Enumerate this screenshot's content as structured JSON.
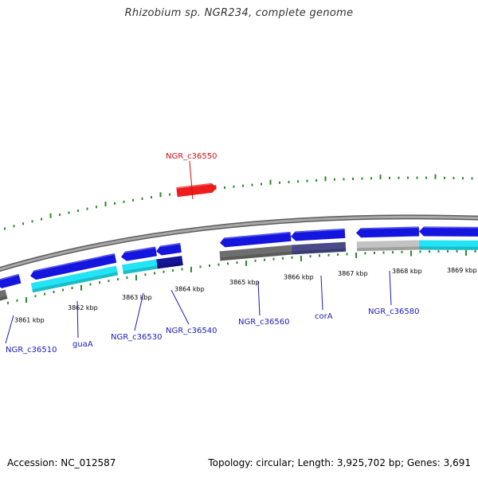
{
  "title": "Rhizobium sp. NGR234, complete genome",
  "footer": {
    "accession": "Accession: NC_012587",
    "topology": "Topology: circular; Length: 3,925,702 bp; Genes: 3,691"
  },
  "colors": {
    "backbone": "#8a8a8a",
    "cds_forward": "#1515e0",
    "cds_reverse": "#1e1ee8",
    "highlight_gene": "#ee1c1c",
    "label_text": "#1a1ab8",
    "highlight_label": "#cc1111",
    "gc_tick": "#2a8a2a",
    "gc_high": "#22e4f4",
    "gc_low_dark": "#15159a",
    "gc_low_gray": "#6e6e6e",
    "gc_light_gray": "#c2c2c2",
    "gc_slate": "#4a4a8a"
  },
  "kbp_labels": [
    "3861 kbp",
    "3862 kbp",
    "3863 kbp",
    "3864 kbp",
    "3865 kbp",
    "3866 kbp",
    "3867 kbp",
    "3868 kbp",
    "3869 kbp"
  ],
  "genes": [
    {
      "label": "NGR_c36510",
      "highlight": false
    },
    {
      "label": "guaA",
      "highlight": false
    },
    {
      "label": "NGR_c36530",
      "highlight": false
    },
    {
      "label": "NGR_c36540",
      "highlight": false
    },
    {
      "label": "NGR_c36550",
      "highlight": true
    },
    {
      "label": "NGR_c36560",
      "highlight": false
    },
    {
      "label": "corA",
      "highlight": false
    },
    {
      "label": "NGR_c36580",
      "highlight": false
    }
  ]
}
